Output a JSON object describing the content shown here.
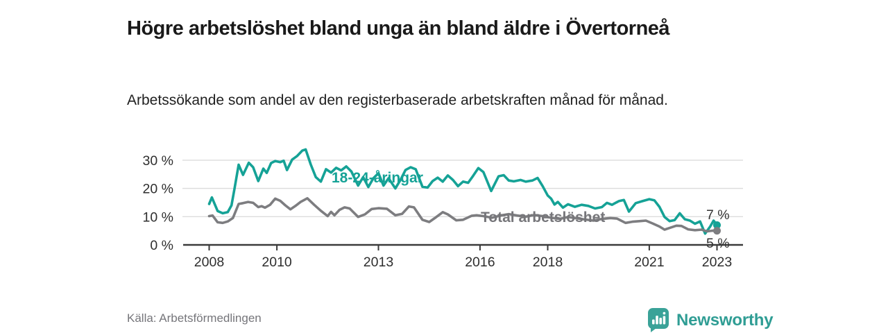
{
  "header": {
    "title": "Högre arbetslöshet bland unga än bland äldre i Övertorneå",
    "subtitle": "Arbetssökande som andel av den registerbaserade arbetskraften månad för månad."
  },
  "footer": {
    "source": "Källa: Arbetsförmedlingen",
    "brand": "Newsworthy"
  },
  "colors": {
    "young_line": "#15a296",
    "total_line": "#7d7d80",
    "total_label": "#76767a",
    "axis": "#3a3a3a",
    "grid": "#dcdcdc",
    "tick_text": "#2e2e2e",
    "end_label_text": "#333333",
    "brand_teal": "#3aa298",
    "background": "#ffffff"
  },
  "chart_data": {
    "type": "line",
    "title": "Högre arbetslöshet bland unga än bland äldre i Övertorneå",
    "subtitle": "Arbetssökande som andel av den registerbaserade arbetskraften månad för månad.",
    "x_axis": {
      "ticks": [
        2008,
        2010,
        2013,
        2016,
        2018,
        2021,
        2023
      ],
      "tick_labels": [
        "2008",
        "2010",
        "2013",
        "2016",
        "2018",
        "2021",
        "2023"
      ],
      "range": [
        2007.25,
        2023.8
      ],
      "unit": "year (monthly data)"
    },
    "y_axis": {
      "ticks": [
        0,
        10,
        20,
        30
      ],
      "tick_labels": [
        "0 %",
        "10 %",
        "20 %",
        "30 %"
      ],
      "range": [
        0,
        36
      ],
      "gridlines": [
        10,
        20,
        30
      ],
      "unit": "percent"
    },
    "legend_position": "inline-labels",
    "series": [
      {
        "name": "18-24-åringar",
        "color": "#15a296",
        "end_label": "7 %",
        "end_value": 7,
        "points": [
          [
            2008.0,
            14.5
          ],
          [
            2008.08,
            16.8
          ],
          [
            2008.25,
            12.0
          ],
          [
            2008.4,
            11.2
          ],
          [
            2008.55,
            11.6
          ],
          [
            2008.66,
            14.0
          ],
          [
            2008.75,
            20.0
          ],
          [
            2008.87,
            28.4
          ],
          [
            2009.0,
            24.8
          ],
          [
            2009.17,
            29.1
          ],
          [
            2009.3,
            27.5
          ],
          [
            2009.45,
            22.6
          ],
          [
            2009.6,
            27.0
          ],
          [
            2009.7,
            25.5
          ],
          [
            2009.83,
            29.0
          ],
          [
            2009.95,
            29.7
          ],
          [
            2010.1,
            29.3
          ],
          [
            2010.2,
            29.8
          ],
          [
            2010.3,
            26.5
          ],
          [
            2010.45,
            30.2
          ],
          [
            2010.6,
            31.5
          ],
          [
            2010.75,
            33.4
          ],
          [
            2010.85,
            33.8
          ],
          [
            2011.0,
            28.5
          ],
          [
            2011.15,
            24.0
          ],
          [
            2011.3,
            22.4
          ],
          [
            2011.45,
            26.8
          ],
          [
            2011.6,
            25.6
          ],
          [
            2011.75,
            27.3
          ],
          [
            2011.9,
            26.4
          ],
          [
            2012.05,
            27.8
          ],
          [
            2012.2,
            26.0
          ],
          [
            2012.4,
            21.0
          ],
          [
            2012.55,
            24.0
          ],
          [
            2012.7,
            20.5
          ],
          [
            2012.85,
            23.6
          ],
          [
            2013.0,
            25.4
          ],
          [
            2013.15,
            21.0
          ],
          [
            2013.3,
            23.6
          ],
          [
            2013.5,
            20.0
          ],
          [
            2013.65,
            23.0
          ],
          [
            2013.8,
            26.5
          ],
          [
            2013.95,
            27.5
          ],
          [
            2014.1,
            26.8
          ],
          [
            2014.3,
            20.6
          ],
          [
            2014.45,
            20.3
          ],
          [
            2014.6,
            22.6
          ],
          [
            2014.75,
            23.8
          ],
          [
            2014.9,
            22.4
          ],
          [
            2015.05,
            24.6
          ],
          [
            2015.2,
            23.0
          ],
          [
            2015.35,
            20.8
          ],
          [
            2015.5,
            22.4
          ],
          [
            2015.65,
            22.0
          ],
          [
            2015.8,
            24.5
          ],
          [
            2015.95,
            27.2
          ],
          [
            2016.1,
            25.8
          ],
          [
            2016.33,
            19.1
          ],
          [
            2016.55,
            24.3
          ],
          [
            2016.7,
            24.7
          ],
          [
            2016.85,
            22.8
          ],
          [
            2017.0,
            22.5
          ],
          [
            2017.2,
            23.0
          ],
          [
            2017.35,
            22.4
          ],
          [
            2017.55,
            22.8
          ],
          [
            2017.7,
            23.7
          ],
          [
            2017.85,
            20.8
          ],
          [
            2018.0,
            17.5
          ],
          [
            2018.1,
            16.4
          ],
          [
            2018.2,
            14.3
          ],
          [
            2018.3,
            15.2
          ],
          [
            2018.45,
            13.2
          ],
          [
            2018.6,
            14.4
          ],
          [
            2018.8,
            13.5
          ],
          [
            2019.0,
            14.2
          ],
          [
            2019.2,
            13.8
          ],
          [
            2019.4,
            12.9
          ],
          [
            2019.6,
            13.4
          ],
          [
            2019.75,
            14.9
          ],
          [
            2019.9,
            14.2
          ],
          [
            2020.1,
            15.5
          ],
          [
            2020.25,
            15.9
          ],
          [
            2020.4,
            11.8
          ],
          [
            2020.6,
            14.8
          ],
          [
            2020.8,
            15.5
          ],
          [
            2021.0,
            16.2
          ],
          [
            2021.15,
            15.8
          ],
          [
            2021.3,
            13.5
          ],
          [
            2021.45,
            9.9
          ],
          [
            2021.6,
            8.4
          ],
          [
            2021.75,
            8.8
          ],
          [
            2021.9,
            11.2
          ],
          [
            2022.05,
            9.1
          ],
          [
            2022.2,
            8.6
          ],
          [
            2022.35,
            7.5
          ],
          [
            2022.5,
            8.3
          ],
          [
            2022.65,
            4.0
          ],
          [
            2022.8,
            6.5
          ],
          [
            2022.9,
            8.6
          ],
          [
            2023.0,
            7.0
          ]
        ]
      },
      {
        "name": "Total arbetslöshet",
        "color": "#7d7d80",
        "end_label": "5 %",
        "end_value": 5,
        "points": [
          [
            2008.0,
            10.2
          ],
          [
            2008.1,
            10.4
          ],
          [
            2008.25,
            8.0
          ],
          [
            2008.4,
            7.8
          ],
          [
            2008.55,
            8.3
          ],
          [
            2008.7,
            9.5
          ],
          [
            2008.87,
            14.5
          ],
          [
            2009.0,
            14.8
          ],
          [
            2009.15,
            15.2
          ],
          [
            2009.3,
            14.9
          ],
          [
            2009.45,
            13.4
          ],
          [
            2009.55,
            13.7
          ],
          [
            2009.65,
            13.2
          ],
          [
            2009.8,
            14.2
          ],
          [
            2009.95,
            16.4
          ],
          [
            2010.1,
            15.6
          ],
          [
            2010.25,
            14.0
          ],
          [
            2010.4,
            12.6
          ],
          [
            2010.55,
            13.8
          ],
          [
            2010.7,
            15.2
          ],
          [
            2010.9,
            16.5
          ],
          [
            2011.1,
            14.2
          ],
          [
            2011.3,
            12.1
          ],
          [
            2011.5,
            10.2
          ],
          [
            2011.6,
            11.7
          ],
          [
            2011.7,
            10.5
          ],
          [
            2011.85,
            12.4
          ],
          [
            2012.0,
            13.3
          ],
          [
            2012.15,
            12.9
          ],
          [
            2012.4,
            9.9
          ],
          [
            2012.6,
            10.8
          ],
          [
            2012.8,
            12.7
          ],
          [
            2013.0,
            13.0
          ],
          [
            2013.25,
            12.8
          ],
          [
            2013.5,
            10.5
          ],
          [
            2013.7,
            11.0
          ],
          [
            2013.9,
            13.6
          ],
          [
            2014.05,
            13.3
          ],
          [
            2014.3,
            8.9
          ],
          [
            2014.5,
            8.1
          ],
          [
            2014.7,
            9.8
          ],
          [
            2014.9,
            11.6
          ],
          [
            2015.05,
            10.8
          ],
          [
            2015.3,
            8.7
          ],
          [
            2015.5,
            8.9
          ],
          [
            2015.75,
            10.3
          ],
          [
            2015.9,
            10.5
          ],
          [
            2016.1,
            10.2
          ],
          [
            2016.35,
            9.6
          ],
          [
            2016.6,
            10.4
          ],
          [
            2016.85,
            10.9
          ],
          [
            2017.1,
            10.4
          ],
          [
            2017.35,
            10.0
          ],
          [
            2017.6,
            10.6
          ],
          [
            2017.85,
            10.2
          ],
          [
            2018.1,
            9.6
          ],
          [
            2018.35,
            9.2
          ],
          [
            2018.6,
            9.9
          ],
          [
            2018.85,
            9.4
          ],
          [
            2019.1,
            9.0
          ],
          [
            2019.35,
            8.6
          ],
          [
            2019.6,
            9.2
          ],
          [
            2019.85,
            9.5
          ],
          [
            2020.05,
            9.3
          ],
          [
            2020.3,
            7.8
          ],
          [
            2020.5,
            8.2
          ],
          [
            2020.7,
            8.4
          ],
          [
            2020.9,
            8.6
          ],
          [
            2021.1,
            7.6
          ],
          [
            2021.3,
            6.5
          ],
          [
            2021.45,
            5.4
          ],
          [
            2021.6,
            6.0
          ],
          [
            2021.8,
            6.8
          ],
          [
            2021.95,
            6.7
          ],
          [
            2022.15,
            5.5
          ],
          [
            2022.35,
            5.2
          ],
          [
            2022.55,
            5.4
          ],
          [
            2022.7,
            4.8
          ],
          [
            2022.85,
            5.0
          ],
          [
            2023.0,
            5.0
          ]
        ]
      }
    ]
  }
}
